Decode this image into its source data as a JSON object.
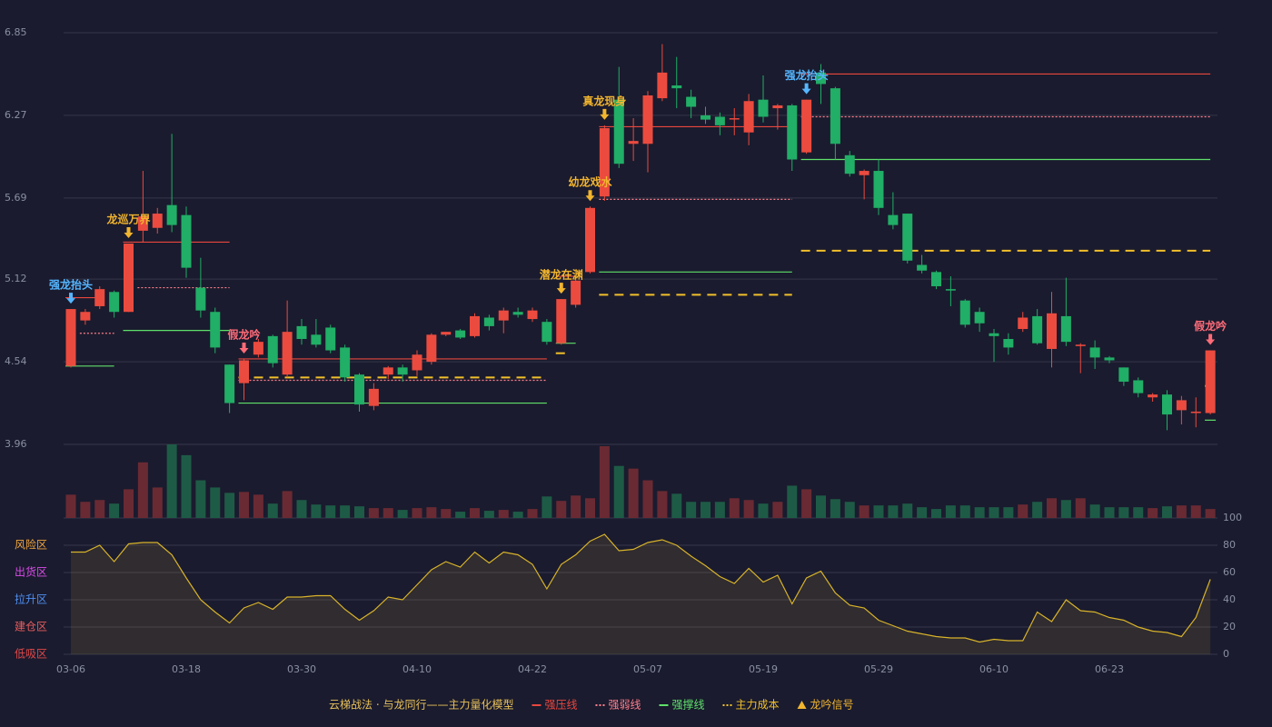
{
  "chart_data": {
    "type": "candlestick",
    "x": [
      "03-06",
      null,
      null,
      null,
      null,
      null,
      null,
      null,
      "03-18",
      null,
      null,
      null,
      null,
      null,
      null,
      null,
      "03-30",
      null,
      null,
      null,
      null,
      null,
      null,
      null,
      "04-10",
      null,
      null,
      null,
      null,
      null,
      null,
      null,
      "04-22",
      null,
      null,
      null,
      null,
      null,
      null,
      null,
      "05-07",
      null,
      null,
      null,
      null,
      null,
      null,
      null,
      "05-19",
      null,
      null,
      null,
      null,
      null,
      null,
      null,
      "05-29",
      null,
      null,
      null,
      null,
      null,
      null,
      null,
      "06-10",
      null,
      null,
      null,
      null,
      null,
      null,
      null,
      "06-23",
      null,
      null,
      null,
      null,
      null,
      null,
      null
    ],
    "open": [
      4.51,
      4.83,
      4.93,
      5.03,
      4.89,
      5.46,
      5.48,
      5.64,
      5.57,
      5.06,
      4.89,
      4.52,
      4.39,
      4.59,
      4.72,
      4.45,
      4.79,
      4.73,
      4.78,
      4.64,
      4.45,
      4.23,
      4.45,
      4.5,
      4.48,
      4.54,
      4.73,
      4.76,
      4.72,
      4.85,
      4.83,
      4.89,
      4.84,
      4.82,
      4.67,
      4.94,
      5.17,
      5.7,
      6.38,
      6.07,
      6.07,
      6.39,
      6.48,
      6.4,
      6.27,
      6.26,
      6.25,
      6.15,
      6.38,
      6.32,
      6.34,
      6.01,
      6.57,
      6.46,
      5.99,
      5.85,
      5.88,
      5.57,
      5.58,
      5.22,
      5.17,
      5.05,
      4.97,
      4.89,
      4.74,
      4.7,
      4.77,
      4.86,
      4.63,
      4.86,
      4.65,
      4.64,
      4.57,
      4.5,
      4.41,
      4.29,
      4.31,
      4.2,
      4.18,
      4.18
    ],
    "high": [
      4.91,
      4.91,
      5.07,
      5.04,
      5.37,
      5.88,
      5.62,
      6.14,
      5.63,
      5.27,
      4.92,
      4.52,
      4.56,
      4.7,
      4.73,
      4.97,
      4.84,
      4.84,
      4.8,
      4.66,
      4.46,
      4.39,
      4.51,
      4.52,
      4.62,
      4.74,
      4.75,
      4.77,
      4.88,
      4.87,
      4.92,
      4.92,
      4.92,
      4.84,
      4.98,
      5.12,
      5.63,
      6.2,
      6.61,
      6.25,
      6.44,
      6.77,
      6.68,
      6.45,
      6.33,
      6.29,
      6.32,
      6.42,
      6.55,
      6.35,
      6.35,
      6.38,
      6.63,
      6.47,
      6.02,
      5.89,
      5.96,
      5.73,
      5.58,
      5.29,
      5.18,
      5.14,
      4.98,
      4.92,
      4.77,
      4.74,
      4.89,
      4.91,
      5.03,
      5.13,
      4.67,
      4.69,
      4.58,
      4.5,
      4.43,
      4.32,
      4.34,
      4.3,
      4.29,
      4.62
    ],
    "low": [
      4.5,
      4.8,
      4.91,
      4.85,
      4.89,
      5.38,
      5.44,
      5.45,
      5.13,
      4.85,
      4.6,
      4.18,
      4.27,
      4.57,
      4.5,
      4.43,
      4.66,
      4.64,
      4.6,
      4.4,
      4.19,
      4.2,
      4.42,
      4.4,
      4.44,
      4.52,
      4.72,
      4.7,
      4.71,
      4.76,
      4.74,
      4.85,
      4.82,
      4.66,
      4.66,
      4.92,
      5.16,
      5.67,
      5.9,
      5.95,
      5.87,
      6.37,
      6.32,
      6.25,
      6.21,
      6.13,
      6.13,
      6.06,
      6.22,
      6.17,
      5.88,
      6.0,
      6.35,
      5.96,
      5.84,
      5.68,
      5.57,
      5.47,
      5.23,
      5.16,
      5.05,
      4.93,
      4.78,
      4.75,
      4.54,
      4.59,
      4.75,
      4.66,
      4.5,
      4.65,
      4.46,
      4.49,
      4.53,
      4.37,
      4.29,
      4.26,
      4.06,
      4.1,
      4.08,
      4.17
    ],
    "close": [
      4.91,
      4.89,
      5.05,
      4.89,
      5.37,
      5.56,
      5.58,
      5.5,
      5.2,
      4.9,
      4.64,
      4.25,
      4.55,
      4.68,
      4.53,
      4.75,
      4.7,
      4.66,
      4.62,
      4.43,
      4.24,
      4.35,
      4.5,
      4.45,
      4.59,
      4.73,
      4.75,
      4.71,
      4.86,
      4.79,
      4.9,
      4.87,
      4.9,
      4.68,
      4.98,
      5.11,
      5.62,
      6.18,
      5.93,
      6.09,
      6.41,
      6.57,
      6.46,
      6.33,
      6.24,
      6.2,
      6.25,
      6.37,
      6.26,
      6.34,
      5.96,
      6.38,
      6.49,
      6.07,
      5.86,
      5.88,
      5.62,
      5.5,
      5.25,
      5.18,
      5.07,
      5.04,
      4.8,
      4.81,
      4.72,
      4.64,
      4.85,
      4.67,
      4.88,
      4.68,
      4.66,
      4.57,
      4.55,
      4.4,
      4.32,
      4.31,
      4.17,
      4.27,
      4.19,
      4.62
    ],
    "up_color": "#eb4b3f",
    "down_color": "#21ae66",
    "ylim": [
      3.96,
      6.85
    ],
    "yticks": [
      3.96,
      4.54,
      5.12,
      5.69,
      6.27,
      6.85
    ],
    "grid": true,
    "volume": {
      "values": [
        26,
        18,
        20,
        16,
        32,
        62,
        34,
        82,
        70,
        42,
        34,
        28,
        29,
        26,
        16,
        30,
        20,
        15,
        14,
        14,
        13,
        11,
        11,
        9,
        11,
        12,
        10,
        7,
        11,
        8,
        9,
        7,
        10,
        24,
        19,
        25,
        22,
        80,
        58,
        55,
        42,
        30,
        27,
        18,
        18,
        18,
        22,
        20,
        16,
        18,
        36,
        32,
        25,
        21,
        18,
        14,
        14,
        14,
        16,
        12,
        10,
        14,
        14,
        12,
        12,
        12,
        15,
        18,
        22,
        20,
        22,
        15,
        12,
        12,
        12,
        11,
        13,
        14,
        14,
        10
      ],
      "up_color": "#6a2a33",
      "down_color": "#1e5b46"
    },
    "indicator": {
      "values": [
        75,
        75,
        80,
        68,
        81,
        82,
        82,
        73,
        56,
        40,
        31,
        23,
        34,
        38,
        33,
        42,
        42,
        43,
        43,
        33,
        25,
        32,
        42,
        40,
        51,
        62,
        68,
        64,
        75,
        67,
        75,
        73,
        66,
        48,
        66,
        73,
        83,
        88,
        76,
        77,
        82,
        84,
        80,
        72,
        65,
        57,
        52,
        63,
        53,
        58,
        37,
        56,
        61,
        45,
        36,
        34,
        25,
        21,
        17,
        15,
        13,
        12,
        12,
        9,
        11,
        10,
        10,
        31,
        24,
        40,
        32,
        31,
        27,
        25,
        20,
        17,
        16,
        13,
        27,
        55
      ],
      "color": "#d8b32a",
      "y2lim": [
        0,
        100
      ],
      "y2ticks": [
        0,
        20,
        40,
        60,
        80,
        100
      ],
      "zones": [
        {
          "value": 80,
          "label": "风险区",
          "color": "#f0a53c"
        },
        {
          "value": 60,
          "label": "出货区",
          "color": "#d94ce8"
        },
        {
          "value": 40,
          "label": "拉升区",
          "color": "#4f8ff2"
        },
        {
          "value": 20,
          "label": "建仓区",
          "color": "#e85d5d"
        },
        {
          "value": 0,
          "label": "低吸区",
          "color": "#e24848"
        }
      ]
    },
    "levels": [
      {
        "name": "强压线",
        "color": "#e8473e",
        "style": "solid",
        "segments": [
          {
            "start": 0,
            "end": 2,
            "value": 4.99
          },
          {
            "start": 4,
            "end": 11,
            "value": 5.38
          },
          {
            "start": 12,
            "end": 33,
            "value": 4.56
          },
          {
            "start": 34,
            "end": 35,
            "value": 5.14
          },
          {
            "start": 37,
            "end": 50,
            "value": 6.19
          },
          {
            "start": 51,
            "end": 79,
            "value": 6.56
          }
        ]
      },
      {
        "name": "强弱线",
        "color": "#ff7f8c",
        "style": "dotted",
        "segments": [
          {
            "start": 1,
            "end": 3,
            "value": 4.74
          },
          {
            "start": 5,
            "end": 11,
            "value": 5.06
          },
          {
            "start": 12,
            "end": 33,
            "value": 4.41
          },
          {
            "start": 37,
            "end": 50,
            "value": 5.68
          },
          {
            "start": 51,
            "end": 79,
            "value": 6.26
          }
        ]
      },
      {
        "name": "强撑线",
        "color": "#5fe06a",
        "style": "solid",
        "segments": [
          {
            "start": 0,
            "end": 3,
            "value": 4.51
          },
          {
            "start": 4,
            "end": 11,
            "value": 4.76
          },
          {
            "start": 12,
            "end": 33,
            "value": 4.25
          },
          {
            "start": 34,
            "end": 35,
            "value": 4.67
          },
          {
            "start": 37,
            "end": 50,
            "value": 5.17
          },
          {
            "start": 51,
            "end": 79,
            "value": 5.96
          },
          {
            "start": 79,
            "end": 79,
            "value": 4.13
          }
        ]
      },
      {
        "name": "主力成本",
        "color": "#f2c02a",
        "style": "dashed",
        "segments": [
          {
            "start": 12,
            "end": 33,
            "value": 4.43
          },
          {
            "start": 34,
            "end": 34,
            "value": 4.6
          },
          {
            "start": 37,
            "end": 50,
            "value": 5.01
          },
          {
            "start": 51,
            "end": 79,
            "value": 5.32
          },
          {
            "start": 79,
            "end": 79,
            "value": 4.37
          }
        ]
      }
    ],
    "signals": [
      {
        "index": 0,
        "label": "强龙抬头",
        "color": "#55b6ff"
      },
      {
        "index": 4,
        "label": "龙巡万界",
        "color": "#f2b52e"
      },
      {
        "index": 12,
        "label": "假龙吟",
        "color": "#ff6b78"
      },
      {
        "index": 34,
        "label": "潜龙在渊",
        "color": "#f2b52e"
      },
      {
        "index": 36,
        "label": "幼龙戏水",
        "color": "#f2b52e"
      },
      {
        "index": 37,
        "label": "真龙现身",
        "color": "#f2b52e"
      },
      {
        "index": 51,
        "label": "强龙抬头",
        "color": "#55b6ff"
      },
      {
        "index": 79,
        "label": "假龙吟",
        "color": "#ff6b78"
      }
    ],
    "signal_name": "龙吟信号",
    "legend_title": "云梯战法 · 与龙同行——主力量化模型"
  }
}
